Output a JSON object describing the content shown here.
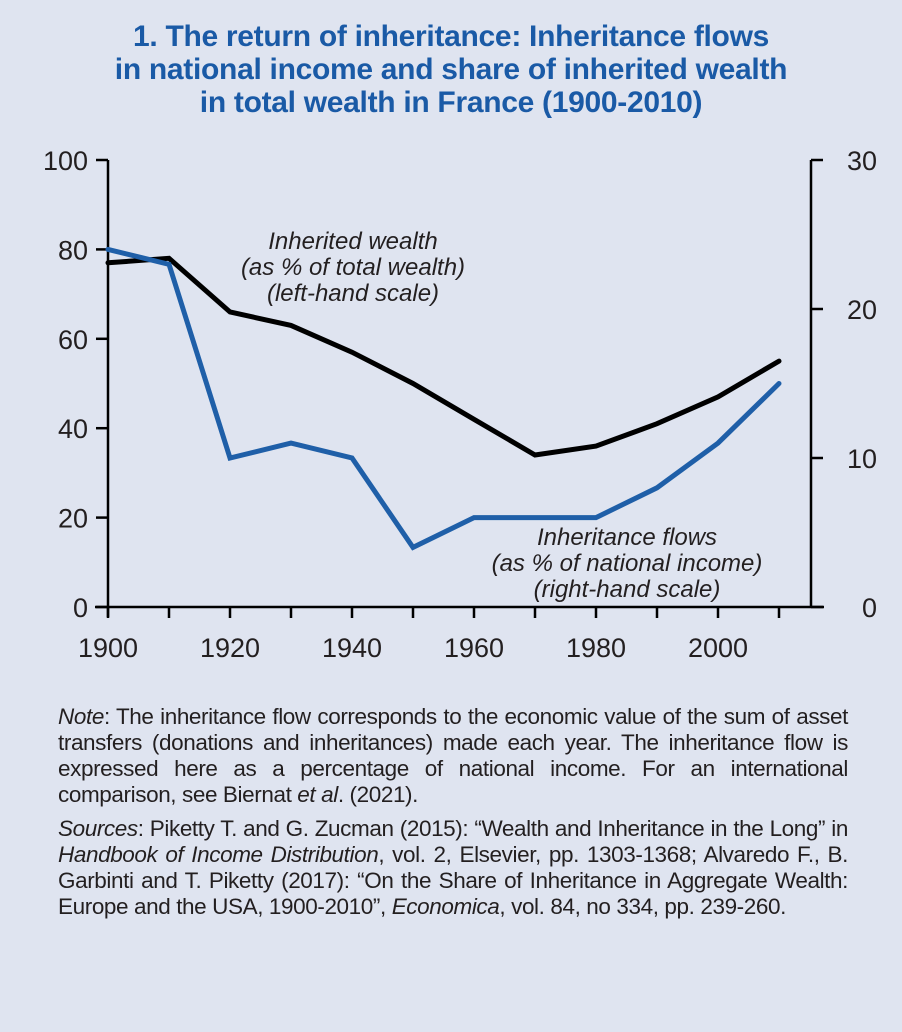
{
  "title": {
    "lines": [
      "1. The return of inheritance: Inheritance flows",
      "in national income and share of inherited wealth",
      "in total wealth in France (1900-2010)"
    ]
  },
  "colors": {
    "background": "#dfe4f0",
    "title": "#1a5aa6",
    "inherited_wealth_line": "#000000",
    "inheritance_flows_line": "#1f5fa8",
    "text": "#231f20"
  },
  "chart_data": {
    "type": "line",
    "title": "1. The return of inheritance: Inheritance flows in national income and share of inherited wealth in total wealth in France (1900-2010)",
    "xlabel": "",
    "x": [
      1900,
      1910,
      1920,
      1930,
      1940,
      1950,
      1960,
      1970,
      1980,
      1990,
      2000,
      2010
    ],
    "xlim": [
      1900,
      2015
    ],
    "x_ticks": [
      1900,
      1910,
      1920,
      1930,
      1940,
      1950,
      1960,
      1970,
      1980,
      1990,
      2000,
      2010
    ],
    "x_tick_labels": [
      "1900",
      "1920",
      "1940",
      "1960",
      "1980",
      "2000"
    ],
    "x_tick_label_values": [
      1900,
      1920,
      1940,
      1960,
      1980,
      2000
    ],
    "y_left": {
      "ylim": [
        0,
        100
      ],
      "ticks": [
        0,
        20,
        40,
        60,
        80,
        100
      ],
      "tick_labels": [
        "0",
        "20",
        "40",
        "60",
        "80",
        "100"
      ],
      "label": ""
    },
    "y_right": {
      "ylim": [
        0,
        30
      ],
      "ticks": [
        0,
        10,
        20,
        30
      ],
      "tick_labels": [
        "0",
        "10",
        "20",
        "30"
      ],
      "label": ""
    },
    "grid": false,
    "legend": "inline annotations",
    "series": [
      {
        "name": "Inherited wealth (as % of total wealth) (left-hand scale)",
        "axis": "left",
        "color": "#000000",
        "values": [
          77,
          78,
          66,
          63,
          57,
          50,
          42,
          34,
          36,
          41,
          47,
          55
        ],
        "annotation_lines": [
          "Inherited wealth",
          "(as % of total wealth)",
          "(left-hand scale)"
        ]
      },
      {
        "name": "Inheritance flows (as % of national income) (right-hand scale)",
        "axis": "right",
        "color": "#1f5fa8",
        "values": [
          24,
          23,
          10,
          11,
          10,
          4,
          6,
          6,
          6,
          8,
          11,
          15
        ],
        "annotation_lines": [
          "Inheritance flows",
          "(as % of national income)",
          "(right-hand scale)"
        ]
      }
    ]
  },
  "note": {
    "label": "Note",
    "text_before": ": The inheritance flow corresponds to the economic value of the sum of asset transfers (donations and inheritances) made each year. The inheritance flow is expressed here as a percentage of national income. For an international comparison, see Biernat ",
    "italic_mid": "et al",
    "text_after": ". (2021)."
  },
  "sources": {
    "label": "Sources",
    "part1": ": Piketty T. and G. Zucman (2015): “Wealth and Inheritance in the Long” in ",
    "italic1": "Handbook of Income Distribution",
    "part2": ", vol. 2, Elsevier, pp. 1303-1368; Alvaredo F., B. Garbinti and T. Piketty (2017): “On the Share of Inheritance in Aggregate Wealth: Europe and the USA, 1900-2010”, ",
    "italic2": "Economica",
    "part3": ", vol. 84, no 334, pp. 239-260."
  }
}
